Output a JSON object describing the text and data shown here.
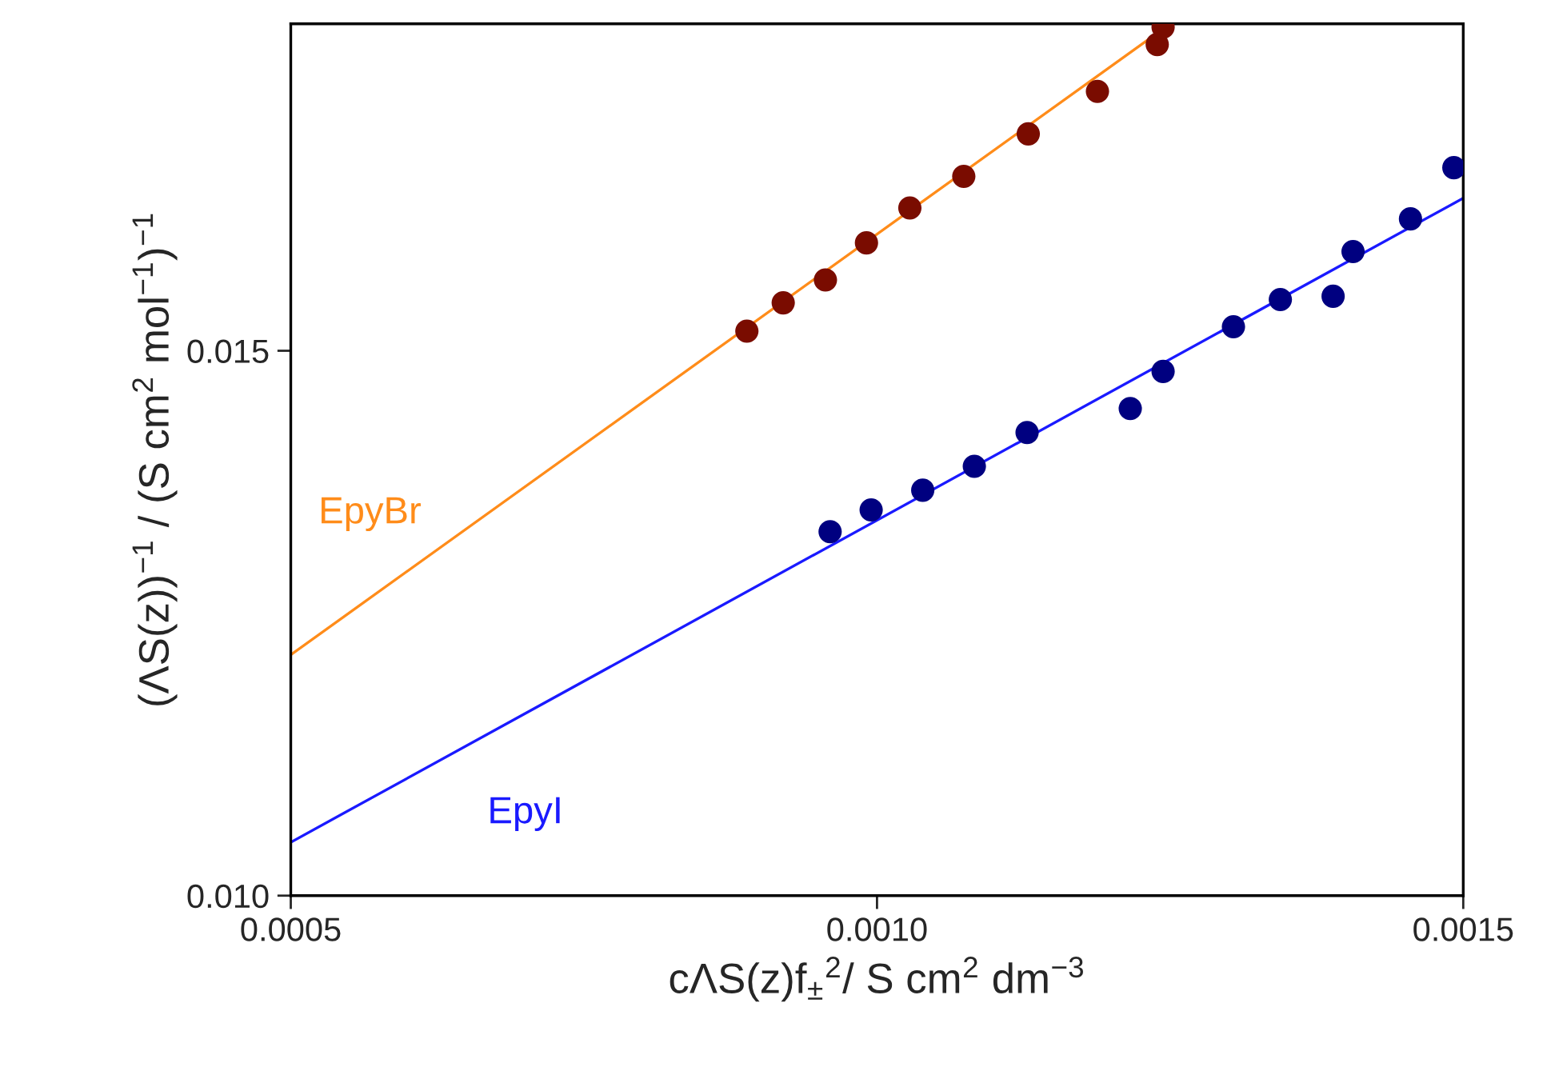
{
  "chart_data": {
    "type": "scatter",
    "xlabel": "cΛS(z)f$_{±}$$^{2}$/ S cm$^{2}$ dm$^{−3}$",
    "ylabel": "(ΛS(z))$^{−1}$ / (S cm$^{2}$ mol$^{−1}$)$^{−1}$",
    "xlim": [
      0.0005,
      0.0015
    ],
    "ylim": [
      0.01,
      0.018
    ],
    "xticks": [
      {
        "value": 0.0005,
        "label": "0.0005"
      },
      {
        "value": 0.001,
        "label": "0.0010"
      },
      {
        "value": 0.0015,
        "label": "0.0015"
      }
    ],
    "yticks": [
      {
        "value": 0.01,
        "label": "0.010"
      },
      {
        "value": 0.015,
        "label": "0.015"
      }
    ],
    "grid": false,
    "marker": "circle",
    "series": [
      {
        "color": "#7a0c00",
        "x": [
          0.000889,
          0.00092,
          0.000956,
          0.000991,
          0.001028,
          0.001074,
          0.001129,
          0.001188,
          0.001239,
          0.001244
        ],
        "values": [
          0.01518,
          0.01544,
          0.01565,
          0.01599,
          0.01631,
          0.0166,
          0.01699,
          0.01738,
          0.01781,
          0.01797
        ]
      },
      {
        "type": "line",
        "name": "EpyBr",
        "color": "#ff8c1a",
        "line_style": "solid",
        "marker": "none",
        "x": [
          0.0005,
          0.00125
        ],
        "values": [
          0.01221,
          0.018
        ]
      },
      {
        "color": "#000080",
        "x": [
          0.00096,
          0.000995,
          0.001039,
          0.001083,
          0.001128,
          0.001216,
          0.001244,
          0.001304,
          0.001344,
          0.001389,
          0.001406,
          0.001455,
          0.001492
        ],
        "values": [
          0.01334,
          0.01354,
          0.01372,
          0.01394,
          0.01425,
          0.01447,
          0.01481,
          0.01522,
          0.01547,
          0.0155,
          0.01591,
          0.01621,
          0.01668
        ]
      },
      {
        "type": "line",
        "name": "EpyI",
        "color": "#1a1aff",
        "line_style": "solid",
        "marker": "none",
        "x": [
          0.0005,
          0.0015
        ],
        "values": [
          0.01049,
          0.0164
        ]
      }
    ]
  }
}
